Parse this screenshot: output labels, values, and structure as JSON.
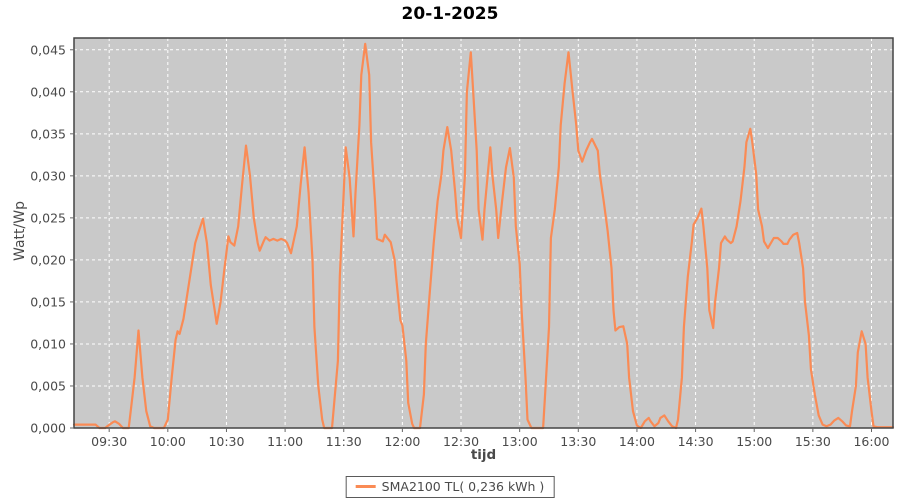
{
  "title": "20-1-2025",
  "colors": {
    "page_bg": "#ffffff",
    "plot_bg": "#c9c9c9",
    "grid": "#ffffff",
    "series": "#fa8b55",
    "plot_border": "#444444",
    "tick_mark": "#666666",
    "tick_text": "#4a4a4a",
    "axis_label_text": "#4a4a4a",
    "title_text": "#000000",
    "legend_border": "#5a5a5a"
  },
  "legend": {
    "label": "SMA2100 TL( 0,236 kWh )"
  },
  "chart_data": {
    "type": "line",
    "title": "20-1-2025",
    "xlabel": "tijd",
    "ylabel": "Watt/Wp",
    "legend_position": "bottom-center",
    "grid": "white dashed on gray background",
    "x_tick_labels": [
      "09:30",
      "10:00",
      "10:30",
      "11:00",
      "11:30",
      "12:00",
      "12:30",
      "13:00",
      "13:30",
      "14:00",
      "14:30",
      "15:00",
      "15:30",
      "16:00"
    ],
    "x_tick_minutes": [
      30,
      60,
      90,
      120,
      150,
      180,
      210,
      240,
      270,
      300,
      330,
      360,
      390,
      420
    ],
    "y_tick_labels": [
      "0,000",
      "0,005",
      "0,010",
      "0,015",
      "0,020",
      "0,025",
      "0,030",
      "0,035",
      "0,040",
      "0,045"
    ],
    "y_tick_values": [
      0,
      0.005,
      0.01,
      0.015,
      0.02,
      0.025,
      0.03,
      0.035,
      0.04,
      0.045
    ],
    "x_domain_minutes": [
      12,
      431
    ],
    "y_domain": [
      0,
      0.0464
    ],
    "series": [
      {
        "name": "SMA2100 TL( 0,236 kWh )",
        "color": "#fa8b55",
        "points": [
          [
            12,
            0.0004
          ],
          [
            23,
            0.0004
          ],
          [
            25,
            0
          ],
          [
            28,
            0
          ],
          [
            29,
            0.0002
          ],
          [
            32,
            0.0007
          ],
          [
            33,
            0.0008
          ],
          [
            35,
            0.0005
          ],
          [
            37,
            0
          ],
          [
            40,
            0
          ],
          [
            41,
            0.002
          ],
          [
            43,
            0.006
          ],
          [
            45,
            0.0116
          ],
          [
            47,
            0.006
          ],
          [
            49,
            0.002
          ],
          [
            51,
            0.0002
          ],
          [
            53,
            0
          ],
          [
            58,
            0
          ],
          [
            60,
            0.001
          ],
          [
            62,
            0.006
          ],
          [
            64,
            0.0105
          ],
          [
            65,
            0.0115
          ],
          [
            66,
            0.0112
          ],
          [
            68,
            0.013
          ],
          [
            70,
            0.016
          ],
          [
            72,
            0.019
          ],
          [
            74,
            0.022
          ],
          [
            76,
            0.0235
          ],
          [
            78,
            0.0249
          ],
          [
            80,
            0.022
          ],
          [
            82,
            0.017
          ],
          [
            84,
            0.014
          ],
          [
            85,
            0.0124
          ],
          [
            87,
            0.015
          ],
          [
            89,
            0.019
          ],
          [
            91,
            0.0228
          ],
          [
            92,
            0.0221
          ],
          [
            94,
            0.0217
          ],
          [
            96,
            0.024
          ],
          [
            98,
            0.029
          ],
          [
            100,
            0.0336
          ],
          [
            102,
            0.0301
          ],
          [
            104,
            0.025
          ],
          [
            106,
            0.022
          ],
          [
            107,
            0.0211
          ],
          [
            109,
            0.0222
          ],
          [
            110,
            0.0227
          ],
          [
            112,
            0.0223
          ],
          [
            114,
            0.0225
          ],
          [
            116,
            0.0223
          ],
          [
            118,
            0.0225
          ],
          [
            120,
            0.0223
          ],
          [
            121,
            0.022
          ],
          [
            123,
            0.0208
          ],
          [
            126,
            0.024
          ],
          [
            128,
            0.029
          ],
          [
            130,
            0.0334
          ],
          [
            132,
            0.028
          ],
          [
            134,
            0.02
          ],
          [
            135,
            0.012
          ],
          [
            137,
            0.005
          ],
          [
            139,
            0.001
          ],
          [
            140,
            0
          ],
          [
            144,
            0
          ],
          [
            147,
            0.008
          ],
          [
            148,
            0.018
          ],
          [
            150,
            0.028
          ],
          [
            151,
            0.0334
          ],
          [
            153,
            0.0298
          ],
          [
            155,
            0.0228
          ],
          [
            156,
            0.028
          ],
          [
            158,
            0.036
          ],
          [
            159,
            0.042
          ],
          [
            161,
            0.0457
          ],
          [
            163,
            0.042
          ],
          [
            164,
            0.034
          ],
          [
            166,
            0.027
          ],
          [
            167,
            0.0225
          ],
          [
            170,
            0.0222
          ],
          [
            171,
            0.023
          ],
          [
            173,
            0.0224
          ],
          [
            174,
            0.0221
          ],
          [
            176,
            0.02
          ],
          [
            177,
            0.0175
          ],
          [
            179,
            0.0128
          ],
          [
            180,
            0.0122
          ],
          [
            182,
            0.008
          ],
          [
            183,
            0.003
          ],
          [
            185,
            0.0005
          ],
          [
            186,
            0
          ],
          [
            189,
            0
          ],
          [
            191,
            0.004
          ],
          [
            192,
            0.01
          ],
          [
            194,
            0.016
          ],
          [
            196,
            0.022
          ],
          [
            198,
            0.027
          ],
          [
            200,
            0.0302
          ],
          [
            201,
            0.033
          ],
          [
            203,
            0.0358
          ],
          [
            205,
            0.033
          ],
          [
            207,
            0.028
          ],
          [
            208,
            0.025
          ],
          [
            210,
            0.0226
          ],
          [
            212,
            0.03
          ],
          [
            213,
            0.04
          ],
          [
            215,
            0.0447
          ],
          [
            216,
            0.041
          ],
          [
            218,
            0.033
          ],
          [
            219,
            0.026
          ],
          [
            221,
            0.0224
          ],
          [
            222,
            0.026
          ],
          [
            224,
            0.031
          ],
          [
            225,
            0.0334
          ],
          [
            226,
            0.0302
          ],
          [
            228,
            0.026
          ],
          [
            229,
            0.0226
          ],
          [
            231,
            0.027
          ],
          [
            233,
            0.031
          ],
          [
            235,
            0.0333
          ],
          [
            237,
            0.0298
          ],
          [
            238,
            0.024
          ],
          [
            240,
            0.0195
          ],
          [
            241,
            0.014
          ],
          [
            243,
            0.006
          ],
          [
            244,
            0.001
          ],
          [
            246,
            0
          ],
          [
            252,
            0
          ],
          [
            253,
            0.004
          ],
          [
            255,
            0.012
          ],
          [
            256,
            0.0226
          ],
          [
            258,
            0.026
          ],
          [
            260,
            0.031
          ],
          [
            261,
            0.036
          ],
          [
            263,
            0.041
          ],
          [
            265,
            0.0447
          ],
          [
            267,
            0.0402
          ],
          [
            269,
            0.036
          ],
          [
            270,
            0.033
          ],
          [
            272,
            0.0317
          ],
          [
            274,
            0.033
          ],
          [
            276,
            0.034
          ],
          [
            277,
            0.0344
          ],
          [
            280,
            0.033
          ],
          [
            281,
            0.0302
          ],
          [
            283,
            0.027
          ],
          [
            285,
            0.0235
          ],
          [
            287,
            0.019
          ],
          [
            288,
            0.014
          ],
          [
            289,
            0.0116
          ],
          [
            291,
            0.012
          ],
          [
            293,
            0.0121
          ],
          [
            295,
            0.01
          ],
          [
            296,
            0.006
          ],
          [
            298,
            0.002
          ],
          [
            300,
            0.0003
          ],
          [
            302,
            0
          ],
          [
            304,
            0.0008
          ],
          [
            306,
            0.0012
          ],
          [
            307,
            0.0008
          ],
          [
            309,
            0.0002
          ],
          [
            311,
            0.0006
          ],
          [
            312,
            0.0012
          ],
          [
            314,
            0.0015
          ],
          [
            316,
            0.0008
          ],
          [
            318,
            0.0002
          ],
          [
            320,
            0
          ],
          [
            321,
            0.001
          ],
          [
            323,
            0.006
          ],
          [
            324,
            0.012
          ],
          [
            326,
            0.018
          ],
          [
            328,
            0.022
          ],
          [
            329,
            0.0242
          ],
          [
            331,
            0.025
          ],
          [
            333,
            0.0261
          ],
          [
            334,
            0.024
          ],
          [
            336,
            0.019
          ],
          [
            337,
            0.014
          ],
          [
            339,
            0.0119
          ],
          [
            340,
            0.015
          ],
          [
            342,
            0.019
          ],
          [
            343,
            0.022
          ],
          [
            345,
            0.0228
          ],
          [
            346,
            0.0224
          ],
          [
            348,
            0.022
          ],
          [
            349,
            0.0222
          ],
          [
            351,
            0.024
          ],
          [
            353,
            0.027
          ],
          [
            355,
            0.031
          ],
          [
            356,
            0.034
          ],
          [
            358,
            0.0356
          ],
          [
            359,
            0.034
          ],
          [
            361,
            0.0302
          ],
          [
            362,
            0.026
          ],
          [
            364,
            0.024
          ],
          [
            365,
            0.0222
          ],
          [
            367,
            0.0214
          ],
          [
            369,
            0.0222
          ],
          [
            370,
            0.0226
          ],
          [
            372,
            0.0226
          ],
          [
            374,
            0.0222
          ],
          [
            375,
            0.0219
          ],
          [
            377,
            0.0219
          ],
          [
            378,
            0.0224
          ],
          [
            380,
            0.023
          ],
          [
            382,
            0.0232
          ],
          [
            383,
            0.022
          ],
          [
            385,
            0.019
          ],
          [
            386,
            0.015
          ],
          [
            388,
            0.011
          ],
          [
            389,
            0.007
          ],
          [
            391,
            0.004
          ],
          [
            393,
            0.0015
          ],
          [
            395,
            0.0004
          ],
          [
            397,
            0.0002
          ],
          [
            399,
            0.0004
          ],
          [
            401,
            0.0009
          ],
          [
            403,
            0.0012
          ],
          [
            405,
            0.0008
          ],
          [
            407,
            0.0003
          ],
          [
            409,
            0.0002
          ],
          [
            410,
            0.002
          ],
          [
            412,
            0.005
          ],
          [
            413,
            0.009
          ],
          [
            415,
            0.0115
          ],
          [
            417,
            0.01
          ],
          [
            418,
            0.006
          ],
          [
            420,
            0.002
          ],
          [
            421,
            0.0002
          ],
          [
            423,
            0.0001
          ],
          [
            427,
            0.0001
          ],
          [
            431,
            0.0001
          ]
        ]
      }
    ]
  }
}
